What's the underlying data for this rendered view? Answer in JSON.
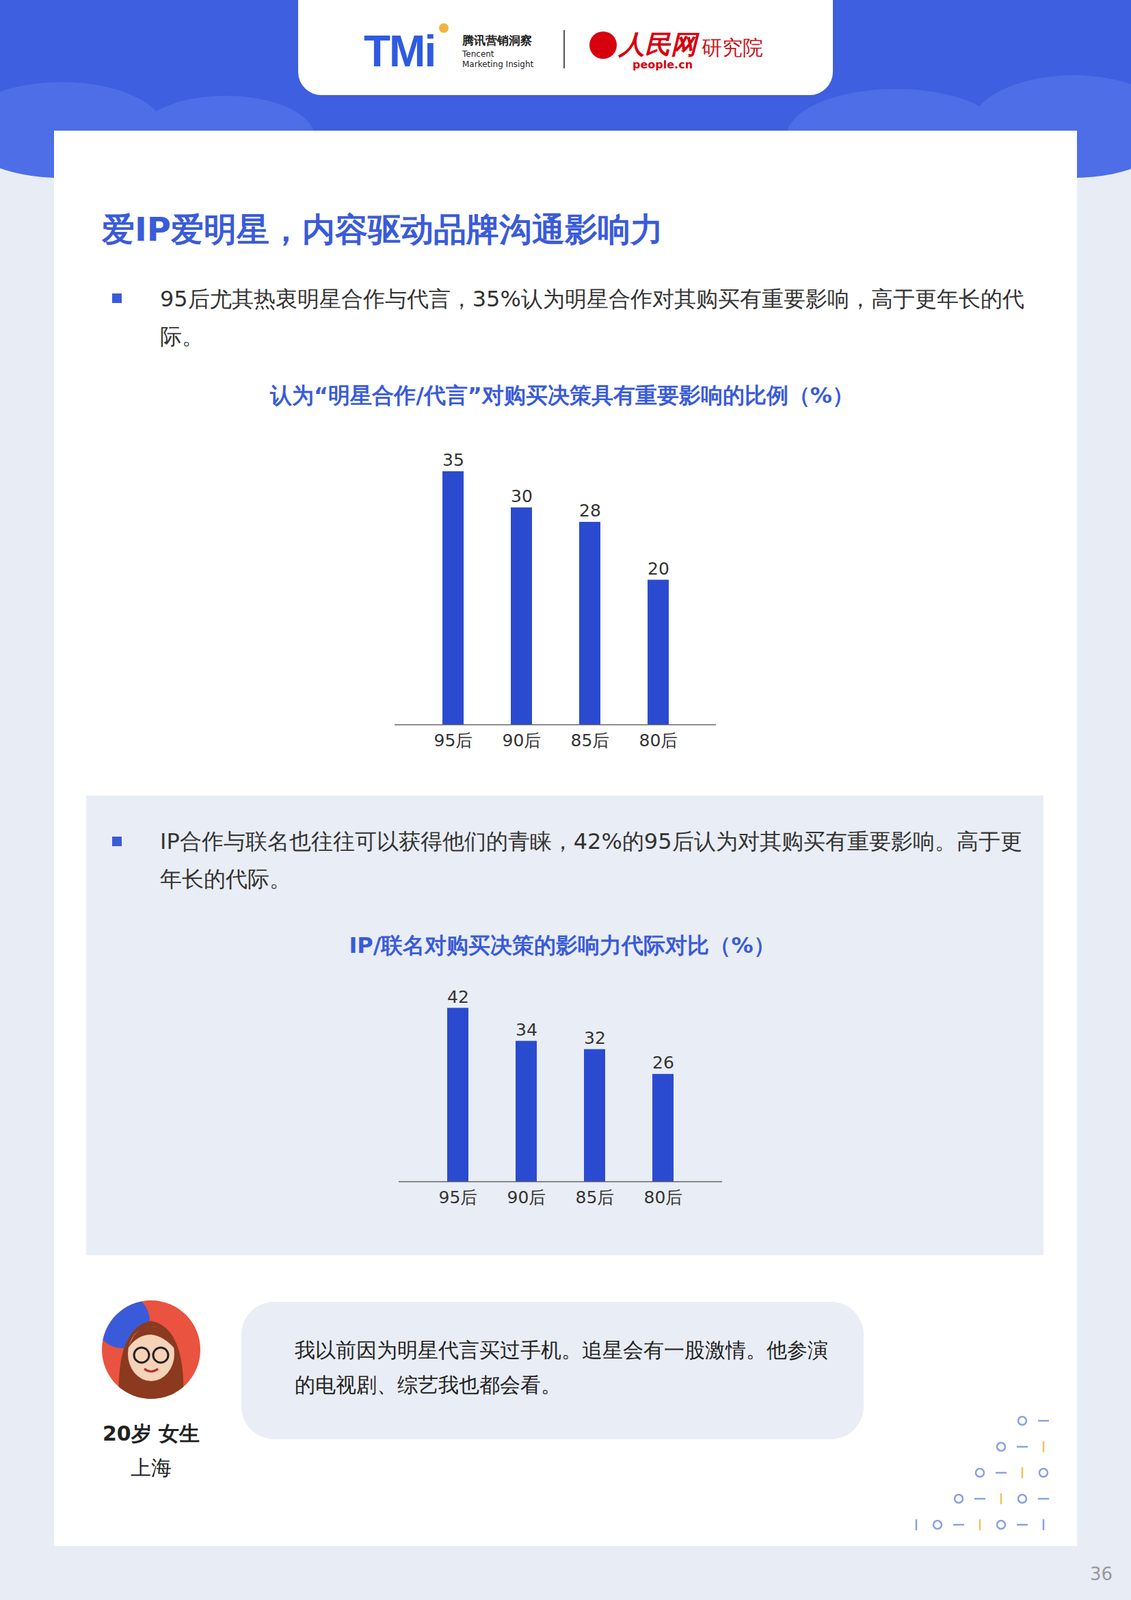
{
  "header": {
    "logo_left": "TMi",
    "logo_left_cn": "腾讯营销洞察",
    "logo_left_en": "Tencent Marketing Insight",
    "logo_right": "人民网",
    "logo_right_en": "people.cn",
    "logo_right_suffix": "研究院"
  },
  "title": "爱IP爱明星，内容驱动品牌沟通影响力",
  "bullets": [
    "95后尤其热衷明星合作与代言，35%认为明星合作对其购买有重要影响，高于更年长的代际。",
    "IP合作与联名也往往可以获得他们的青睐，42%的95后认为对其购买有重要影响。高于更年长的代际。"
  ],
  "chart_data": [
    {
      "type": "bar",
      "title": "认为“明星合作/代言”对购买决策具有重要影响的比例（%）",
      "categories": [
        "95后",
        "90后",
        "85后",
        "80后"
      ],
      "values": [
        35,
        30,
        28,
        20
      ],
      "color": "#2a4bd0",
      "ylim": [
        0,
        40
      ],
      "yticks": [],
      "grid": false,
      "data_labels": true,
      "tick_labels": "x"
    },
    {
      "type": "bar",
      "title": "IP/联名对购买决策的影响力代际对比（%）",
      "categories": [
        "95后",
        "90后",
        "85后",
        "80后"
      ],
      "values": [
        42,
        34,
        32,
        26
      ],
      "color": "#2a4bd0",
      "ylim": [
        0,
        50
      ],
      "yticks": [],
      "grid": false,
      "data_labels": true,
      "tick_labels": "x"
    }
  ],
  "quote": {
    "lines": [
      "我以前因为明星代言买过手机。追星会有一股激情。他参演",
      "的电视剧、综艺我也都会看。"
    ],
    "person": "20岁 女生",
    "city": "上海"
  },
  "page_number": "36"
}
